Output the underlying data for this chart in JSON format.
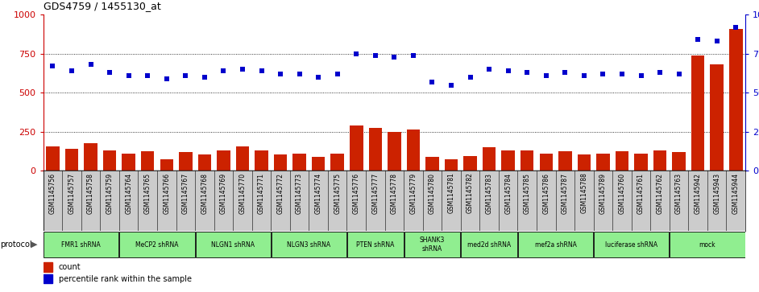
{
  "title": "GDS4759 / 1455130_at",
  "samples": [
    "GSM1145756",
    "GSM1145757",
    "GSM1145758",
    "GSM1145759",
    "GSM1145764",
    "GSM1145765",
    "GSM1145766",
    "GSM1145767",
    "GSM1145768",
    "GSM1145769",
    "GSM1145770",
    "GSM1145771",
    "GSM1145772",
    "GSM1145773",
    "GSM1145774",
    "GSM1145775",
    "GSM1145776",
    "GSM1145777",
    "GSM1145778",
    "GSM1145779",
    "GSM1145780",
    "GSM1145781",
    "GSM1145782",
    "GSM1145783",
    "GSM1145784",
    "GSM1145785",
    "GSM1145786",
    "GSM1145787",
    "GSM1145788",
    "GSM1145789",
    "GSM1145760",
    "GSM1145761",
    "GSM1145762",
    "GSM1145763",
    "GSM1145942",
    "GSM1145943",
    "GSM1145944"
  ],
  "counts": [
    155,
    140,
    175,
    130,
    110,
    125,
    75,
    120,
    105,
    130,
    155,
    130,
    105,
    110,
    90,
    110,
    290,
    275,
    250,
    265,
    90,
    75,
    95,
    150,
    130,
    130,
    110,
    125,
    105,
    110,
    125,
    110,
    130,
    120,
    740,
    680,
    910
  ],
  "percentiles": [
    67,
    64,
    68,
    63,
    61,
    61,
    59,
    61,
    60,
    64,
    65,
    64,
    62,
    62,
    60,
    62,
    75,
    74,
    73,
    74,
    57,
    55,
    60,
    65,
    64,
    63,
    61,
    63,
    61,
    62,
    62,
    61,
    63,
    62,
    84,
    83,
    92
  ],
  "protocols": [
    {
      "label": "FMR1 shRNA",
      "start": 0,
      "end": 4
    },
    {
      "label": "MeCP2 shRNA",
      "start": 4,
      "end": 8
    },
    {
      "label": "NLGN1 shRNA",
      "start": 8,
      "end": 12
    },
    {
      "label": "NLGN3 shRNA",
      "start": 12,
      "end": 16
    },
    {
      "label": "PTEN shRNA",
      "start": 16,
      "end": 19
    },
    {
      "label": "SHANK3\nshRNA",
      "start": 19,
      "end": 22
    },
    {
      "label": "med2d shRNA",
      "start": 22,
      "end": 25
    },
    {
      "label": "mef2a shRNA",
      "start": 25,
      "end": 29
    },
    {
      "label": "luciferase shRNA",
      "start": 29,
      "end": 33
    },
    {
      "label": "mock",
      "start": 33,
      "end": 37
    }
  ],
  "proto_color": "#90EE90",
  "bar_color": "#CC2200",
  "dot_color": "#0000CC",
  "xtick_bg": "#C8C8C8"
}
